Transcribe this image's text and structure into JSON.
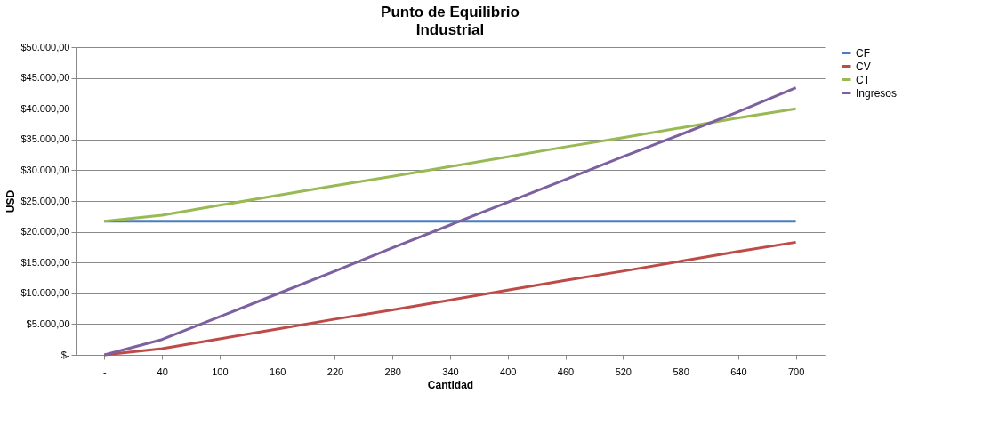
{
  "chart_data": {
    "type": "line",
    "title": "Punto de Equilibrio",
    "subtitle": "Industrial",
    "xlabel": "Cantidad",
    "ylabel": "USD",
    "categories": [
      "-",
      "40",
      "100",
      "160",
      "220",
      "280",
      "340",
      "400",
      "460",
      "520",
      "580",
      "640",
      "700"
    ],
    "series": [
      {
        "name": "CF",
        "color": "#4a7ebb",
        "values": [
          21700,
          21700,
          21700,
          21700,
          21700,
          21700,
          21700,
          21700,
          21700,
          21700,
          21700,
          21700,
          21700
        ]
      },
      {
        "name": "CV",
        "color": "#be4b48",
        "values": [
          0,
          1000,
          2600,
          4200,
          5800,
          7300,
          8900,
          10500,
          12100,
          13600,
          15200,
          16800,
          18300
        ]
      },
      {
        "name": "CT",
        "color": "#98b954",
        "values": [
          21700,
          22700,
          24300,
          25900,
          27500,
          29000,
          30600,
          32200,
          33800,
          35300,
          36900,
          38500,
          40000
        ]
      },
      {
        "name": "Ingresos",
        "color": "#7d60a0",
        "values": [
          0,
          2500,
          6200,
          9900,
          13600,
          17400,
          21100,
          24800,
          28500,
          32200,
          35800,
          39500,
          43400
        ]
      }
    ],
    "ylim": [
      0,
      50000
    ],
    "yticks": [
      {
        "value": 0,
        "label": "$-"
      },
      {
        "value": 5000,
        "label": "$5.000,00"
      },
      {
        "value": 10000,
        "label": "$10.000,00"
      },
      {
        "value": 15000,
        "label": "$15.000,00"
      },
      {
        "value": 20000,
        "label": "$20.000,00"
      },
      {
        "value": 25000,
        "label": "$25.000,00"
      },
      {
        "value": 30000,
        "label": "$30.000,00"
      },
      {
        "value": 35000,
        "label": "$35.000,00"
      },
      {
        "value": 40000,
        "label": "$40.000,00"
      },
      {
        "value": 45000,
        "label": "$45.000,00"
      },
      {
        "value": 50000,
        "label": "$50.000,00"
      }
    ],
    "grid": "y",
    "legend": "right",
    "marker": "none",
    "line_style": "solid"
  }
}
